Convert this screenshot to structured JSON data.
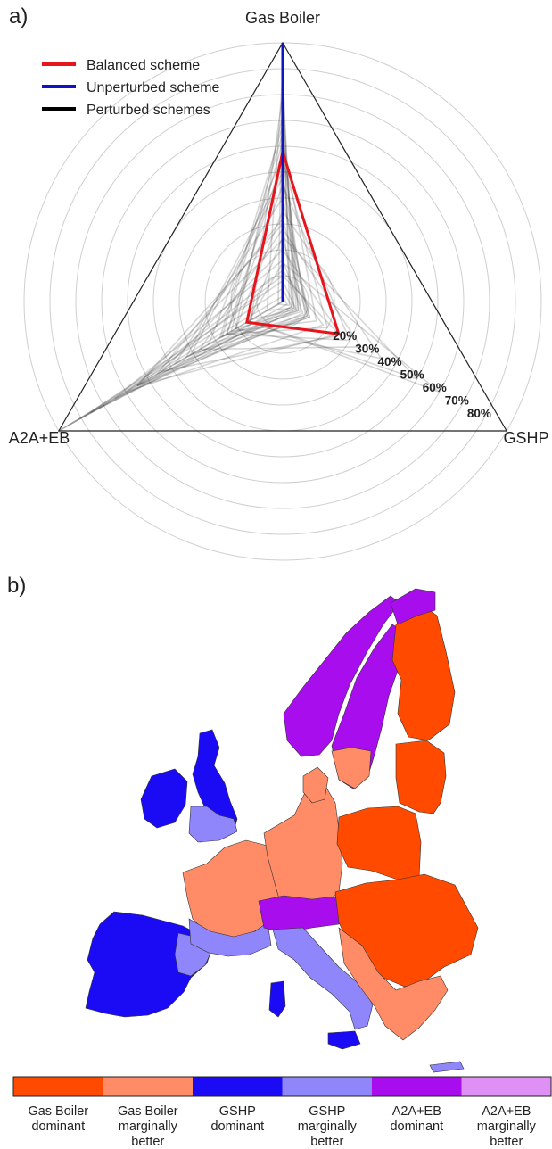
{
  "panels": {
    "a": "a)",
    "b": "b)"
  },
  "colors": {
    "balanced": "#e8141b",
    "unperturbed": "#1212c4",
    "perturbed": "#000000",
    "gas_dominant": "#ff4a00",
    "gas_marginal": "#ff8c66",
    "gshp_dominant": "#1b0bf5",
    "gshp_marginal": "#8f86fb",
    "a2a_dominant": "#a80ded",
    "a2a_marginal": "#de90f5"
  },
  "chart_data": [
    {
      "type": "radar",
      "axes": [
        "Gas Boiler",
        "GSHP",
        "A2A+EB"
      ],
      "rings": [
        "20%",
        "30%",
        "40%",
        "50%",
        "60%",
        "70%",
        "80%"
      ],
      "ring_values": [
        20,
        30,
        40,
        50,
        60,
        70,
        80
      ],
      "grid": true,
      "legend_position": "top-left",
      "legend": [
        "Balanced scheme",
        "Unperturbed scheme",
        "Perturbed schemes"
      ],
      "series": [
        {
          "name": "Balanced scheme",
          "values": [
            58,
            25,
            16
          ]
        },
        {
          "name": "Unperturbed scheme",
          "values": [
            100,
            0,
            0
          ]
        },
        {
          "name": "Perturbed schemes",
          "values": [
            [
              100,
              0,
              0
            ],
            [
              95,
              3,
              2
            ],
            [
              88,
              5,
              7
            ],
            [
              80,
              6,
              14
            ],
            [
              72,
              7,
              21
            ],
            [
              65,
              8,
              27
            ],
            [
              57,
              10,
              33
            ],
            [
              48,
              11,
              41
            ],
            [
              40,
              12,
              48
            ],
            [
              32,
              12,
              56
            ],
            [
              24,
              11,
              65
            ],
            [
              16,
              9,
              75
            ],
            [
              8,
              6,
              86
            ],
            [
              0,
              0,
              100
            ],
            [
              0,
              0,
              100
            ],
            [
              2,
              2,
              96
            ],
            [
              5,
              4,
              91
            ],
            [
              12,
              18,
              70
            ],
            [
              20,
              26,
              54
            ],
            [
              28,
              35,
              37
            ],
            [
              35,
              44,
              21
            ],
            [
              25,
              60,
              15
            ],
            [
              15,
              70,
              15
            ],
            [
              45,
              30,
              25
            ],
            [
              55,
              20,
              25
            ],
            [
              62,
              15,
              23
            ],
            [
              50,
              7,
              43
            ],
            [
              30,
              5,
              65
            ],
            [
              10,
              25,
              65
            ],
            [
              68,
              4,
              28
            ]
          ]
        }
      ]
    },
    {
      "type": "map",
      "legend": [
        "Gas Boiler dominant",
        "Gas Boiler marginally better",
        "GSHP dominant",
        "GSHP marginally better",
        "A2A+EB dominant",
        "A2A+EB marginally better"
      ]
    }
  ],
  "colorbar": {
    "labels": [
      [
        "Gas Boiler",
        "dominant"
      ],
      [
        "Gas Boiler",
        "marginally",
        "better"
      ],
      [
        "GSHP",
        "dominant"
      ],
      [
        "GSHP",
        "marginally",
        "better"
      ],
      [
        "A2A+EB",
        "dominant"
      ],
      [
        "A2A+EB",
        "marginally",
        "better"
      ]
    ]
  }
}
